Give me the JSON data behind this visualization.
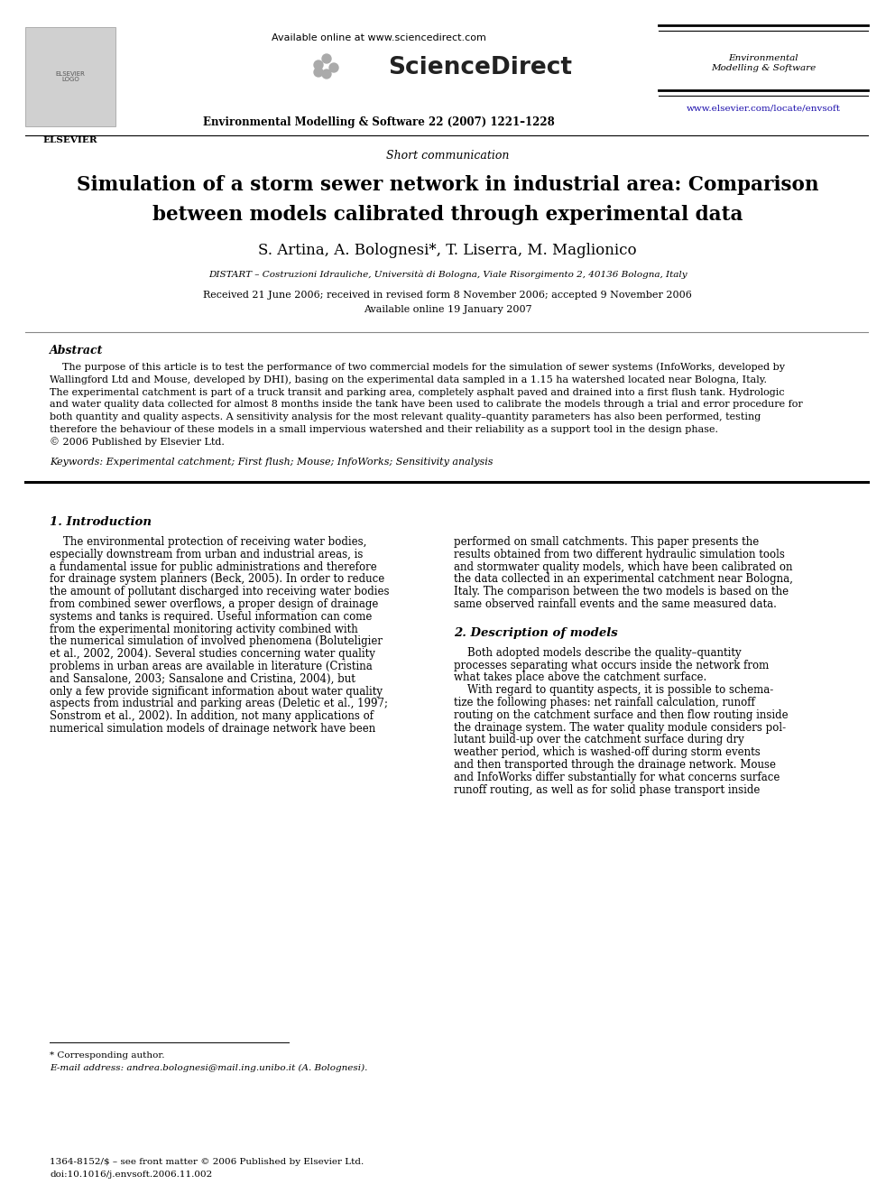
{
  "page_bg": "#ffffff",
  "available_online": "Available online at www.sciencedirect.com",
  "sciencedirect": "ScienceDirect",
  "journal_name_right": "Environmental\nModelling & Software",
  "journal_issue": "Environmental Modelling & Software 22 (2007) 1221–1228",
  "url": "www.elsevier.com/locate/envsoft",
  "section_label": "Short communication",
  "title_line1": "Simulation of a storm sewer network in industrial area: Comparison",
  "title_line2": "between models calibrated through experimental data",
  "authors": "S. Artina, A. Bolognesi*, T. Liserra, M. Maglionico",
  "affiliation": "DISTART – Costruzioni Idrauliche, Università di Bologna, Viale Risorgimento 2, 40136 Bologna, Italy",
  "received": "Received 21 June 2006; received in revised form 8 November 2006; accepted 9 November 2006",
  "available": "Available online 19 January 2007",
  "abstract_title": "Abstract",
  "keywords": "Keywords: Experimental catchment; First flush; Mouse; InfoWorks; Sensitivity analysis",
  "section1_title": "1. Introduction",
  "section2_title": "2. Description of models",
  "footnote_star": "* Corresponding author.",
  "footnote_email": "E-mail address: andrea.bolognesi@mail.ing.unibo.it (A. Bolognesi).",
  "footer_left": "1364-8152/$ – see front matter © 2006 Published by Elsevier Ltd.",
  "footer_doi": "doi:10.1016/j.envsoft.2006.11.002",
  "abstract_lines": [
    "    The purpose of this article is to test the performance of two commercial models for the simulation of sewer systems (InfoWorks, developed by",
    "Wallingford Ltd and Mouse, developed by DHI), basing on the experimental data sampled in a 1.15 ha watershed located near Bologna, Italy.",
    "The experimental catchment is part of a truck transit and parking area, completely asphalt paved and drained into a first flush tank. Hydrologic",
    "and water quality data collected for almost 8 months inside the tank have been used to calibrate the models through a trial and error procedure for",
    "both quantity and quality aspects. A sensitivity analysis for the most relevant quality–quantity parameters has also been performed, testing",
    "therefore the behaviour of these models in a small impervious watershed and their reliability as a support tool in the design phase.",
    "© 2006 Published by Elsevier Ltd."
  ],
  "intro_left_lines": [
    "    The environmental protection of receiving water bodies,",
    "especially downstream from urban and industrial areas, is",
    "a fundamental issue for public administrations and therefore",
    "for drainage system planners (Beck, 2005). In order to reduce",
    "the amount of pollutant discharged into receiving water bodies",
    "from combined sewer overflows, a proper design of drainage",
    "systems and tanks is required. Useful information can come",
    "from the experimental monitoring activity combined with",
    "the numerical simulation of involved phenomena (Boluteligier",
    "et al., 2002, 2004). Several studies concerning water quality",
    "problems in urban areas are available in literature (Cristina",
    "and Sansalone, 2003; Sansalone and Cristina, 2004), but",
    "only a few provide significant information about water quality",
    "aspects from industrial and parking areas (Deletic et al., 1997;",
    "Sonstrom et al., 2002). In addition, not many applications of",
    "numerical simulation models of drainage network have been"
  ],
  "intro_right_lines": [
    "performed on small catchments. This paper presents the",
    "results obtained from two different hydraulic simulation tools",
    "and stormwater quality models, which have been calibrated on",
    "the data collected in an experimental catchment near Bologna,",
    "Italy. The comparison between the two models is based on the",
    "same observed rainfall events and the same measured data."
  ],
  "sec2_lines": [
    "    Both adopted models describe the quality–quantity",
    "processes separating what occurs inside the network from",
    "what takes place above the catchment surface.",
    "    With regard to quantity aspects, it is possible to schema-",
    "tize the following phases: net rainfall calculation, runoff",
    "routing on the catchment surface and then flow routing inside",
    "the drainage system. The water quality module considers pol-",
    "lutant build-up over the catchment surface during dry",
    "weather period, which is washed-off during storm events",
    "and then transported through the drainage network. Mouse",
    "and InfoWorks differ substantially for what concerns surface",
    "runoff routing, as well as for solid phase transport inside"
  ]
}
